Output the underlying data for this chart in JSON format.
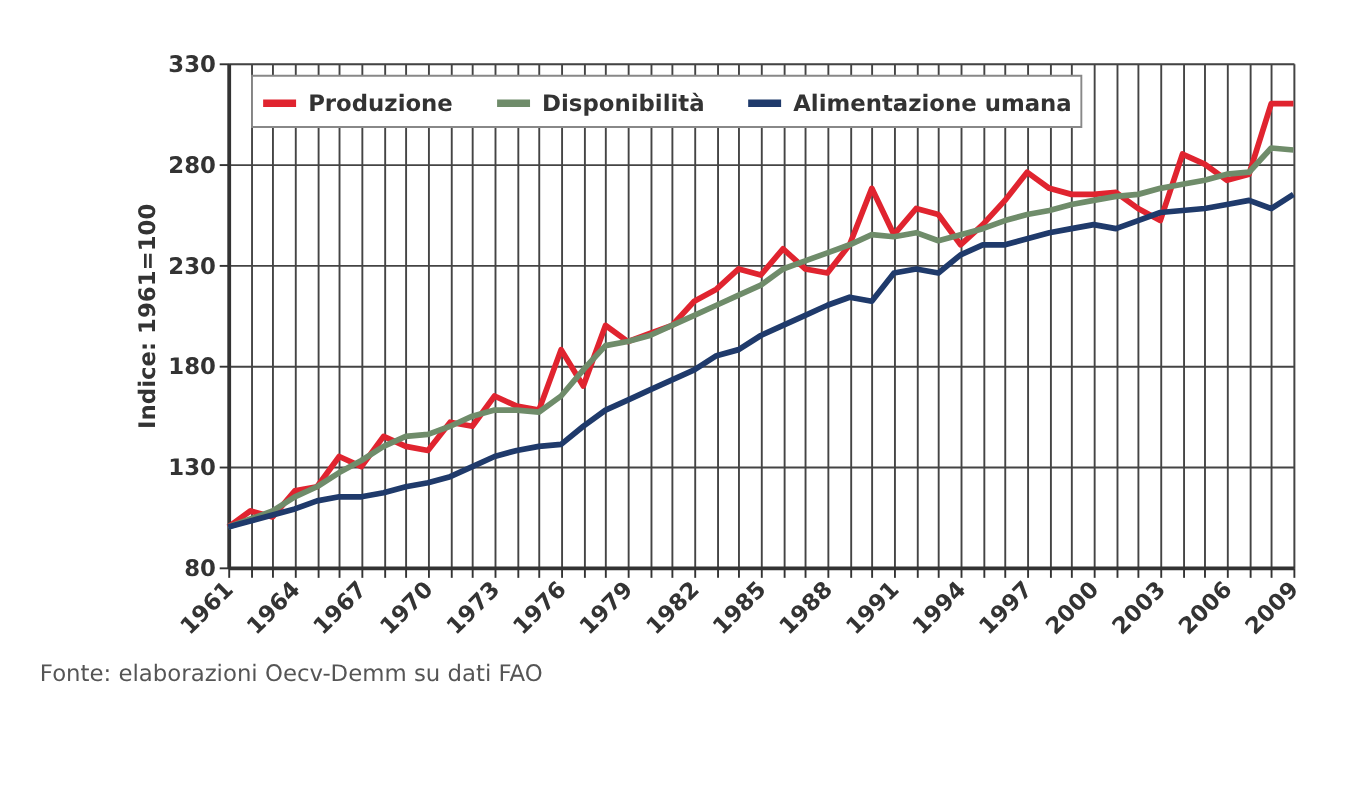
{
  "chart_data": {
    "type": "line",
    "ylabel": "Indice: 1961=100",
    "annotations": [
      "Fonte: elaborazioni Oecv-Demm su dati FAO"
    ],
    "x": [
      1961,
      1962,
      1963,
      1964,
      1965,
      1966,
      1967,
      1968,
      1969,
      1970,
      1971,
      1972,
      1973,
      1974,
      1975,
      1976,
      1977,
      1978,
      1979,
      1980,
      1981,
      1982,
      1983,
      1984,
      1985,
      1986,
      1987,
      1988,
      1989,
      1990,
      1991,
      1992,
      1993,
      1994,
      1995,
      1996,
      1997,
      1998,
      1999,
      2000,
      2001,
      2002,
      2003,
      2004,
      2005,
      2006,
      2007,
      2008,
      2009
    ],
    "series": [
      {
        "name": "Produzione",
        "color": "#e0242f",
        "values": [
          100,
          108,
          105,
          118,
          120,
          135,
          130,
          145,
          140,
          138,
          152,
          150,
          165,
          160,
          158,
          188,
          170,
          200,
          192,
          196,
          200,
          212,
          218,
          228,
          225,
          238,
          228,
          226,
          240,
          268,
          245,
          258,
          255,
          240,
          250,
          262,
          276,
          268,
          265,
          265,
          266,
          258,
          252,
          285,
          280,
          272,
          275,
          310,
          310
        ]
      },
      {
        "name": "Disponibilità",
        "color": "#6f8c6a",
        "values": [
          100,
          104,
          108,
          115,
          120,
          127,
          133,
          140,
          145,
          146,
          150,
          155,
          158,
          158,
          157,
          165,
          178,
          190,
          192,
          195,
          200,
          205,
          210,
          215,
          220,
          228,
          232,
          236,
          240,
          245,
          244,
          246,
          242,
          245,
          248,
          252,
          255,
          257,
          260,
          262,
          264,
          265,
          268,
          270,
          272,
          275,
          276,
          288,
          287
        ]
      },
      {
        "name": "Alimentazione umana",
        "color": "#1f3a6b",
        "values": [
          100,
          103,
          106,
          109,
          113,
          115,
          115,
          117,
          120,
          122,
          125,
          130,
          135,
          138,
          140,
          141,
          150,
          158,
          163,
          168,
          173,
          178,
          185,
          188,
          195,
          200,
          205,
          210,
          214,
          212,
          226,
          228,
          226,
          235,
          240,
          240,
          243,
          246,
          248,
          250,
          248,
          252,
          256,
          257,
          258,
          260,
          262,
          258,
          265
        ]
      }
    ],
    "xlim": [
      1961,
      2009
    ],
    "xticks": [
      1961,
      {
        "value": 1962,
        "label": null
      },
      {
        "value": 1963,
        "label": null
      },
      1964,
      {
        "value": 1965,
        "label": null
      },
      {
        "value": 1966,
        "label": null
      },
      1967,
      {
        "value": 1968,
        "label": null
      },
      {
        "value": 1969,
        "label": null
      },
      1970,
      {
        "value": 1971,
        "label": null
      },
      {
        "value": 1972,
        "label": null
      },
      1973,
      {
        "value": 1974,
        "label": null
      },
      {
        "value": 1975,
        "label": null
      },
      1976,
      {
        "value": 1977,
        "label": null
      },
      {
        "value": 1978,
        "label": null
      },
      1979,
      {
        "value": 1980,
        "label": null
      },
      {
        "value": 1981,
        "label": null
      },
      1982,
      {
        "value": 1983,
        "label": null
      },
      {
        "value": 1984,
        "label": null
      },
      1985,
      {
        "value": 1986,
        "label": null
      },
      {
        "value": 1987,
        "label": null
      },
      1988,
      {
        "value": 1989,
        "label": null
      },
      {
        "value": 1990,
        "label": null
      },
      1991,
      {
        "value": 1992,
        "label": null
      },
      {
        "value": 1993,
        "label": null
      },
      1994,
      {
        "value": 1995,
        "label": null
      },
      {
        "value": 1996,
        "label": null
      },
      1997,
      {
        "value": 1998,
        "label": null
      },
      {
        "value": 1999,
        "label": null
      },
      2000,
      {
        "value": 2001,
        "label": null
      },
      {
        "value": 2002,
        "label": null
      },
      2003,
      {
        "value": 2004,
        "label": null
      },
      {
        "value": 2005,
        "label": null
      },
      2006,
      {
        "value": 2007,
        "label": null
      },
      {
        "value": 2008,
        "label": null
      },
      2009
    ],
    "ylim": [
      80,
      330
    ],
    "yticks": [
      80,
      130,
      180,
      230,
      280,
      330
    ],
    "grid": true,
    "legend": "top",
    "marker": "none",
    "line_style": "solid"
  }
}
